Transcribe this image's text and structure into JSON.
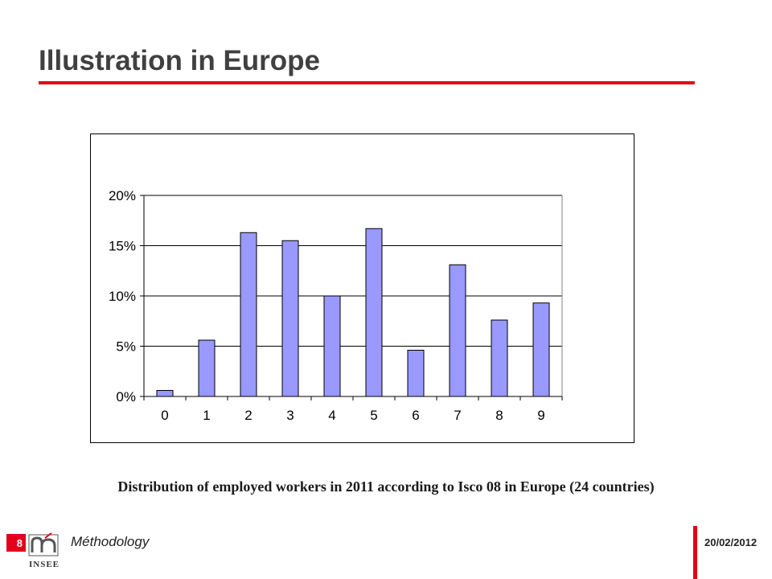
{
  "slide": {
    "title": "Illustration in Europe",
    "caption": "Distribution of employed workers in 2011 according to Isco 08 in Europe (24 countries)"
  },
  "footer": {
    "page_number": "8",
    "section_label": "Méthodology",
    "logo_text": "INSEE",
    "date": "20/02/2012"
  },
  "colors": {
    "accent": "#e3001b",
    "bar_fill": "#9999ff",
    "title_text": "#404040"
  },
  "chart_data": {
    "type": "bar",
    "title": "",
    "xlabel": "",
    "ylabel": "",
    "categories": [
      "0",
      "1",
      "2",
      "3",
      "4",
      "5",
      "6",
      "7",
      "8",
      "9"
    ],
    "values": [
      0.6,
      5.6,
      16.3,
      15.5,
      10.0,
      16.7,
      4.6,
      13.1,
      7.6,
      9.3
    ],
    "unit": "%",
    "ylim": [
      0,
      20
    ],
    "yticks": [
      0,
      5,
      10,
      15,
      20
    ],
    "ytick_labels": [
      "0%",
      "5%",
      "10%",
      "15%",
      "20%"
    ],
    "grid": true,
    "legend": "none"
  }
}
